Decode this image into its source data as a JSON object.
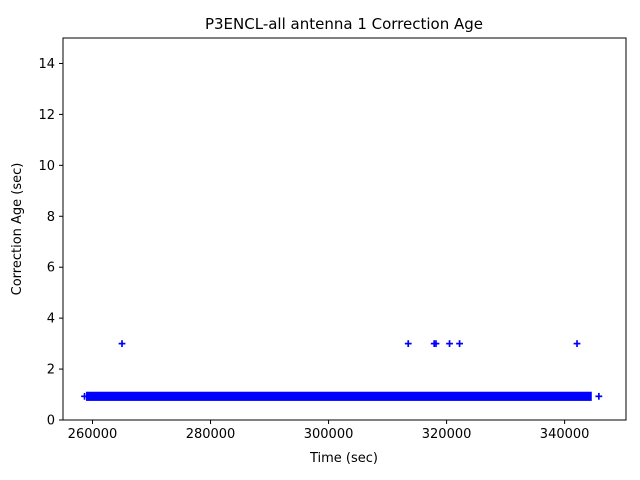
{
  "chart_data": {
    "type": "scatter",
    "title": "P3ENCL-all antenna 1 Correction Age",
    "xlabel": "Time (sec)",
    "ylabel": "Correction Age (sec)",
    "xlim": [
      255000,
      350400
    ],
    "ylim": [
      0,
      15
    ],
    "xticks": [
      260000,
      280000,
      300000,
      320000,
      340000
    ],
    "yticks": [
      0,
      2,
      4,
      6,
      8,
      10,
      12,
      14
    ],
    "grid": false,
    "legend": null,
    "marker": "plus",
    "marker_color": "#0000ff",
    "axis_color": "#000000",
    "background_color": "#ffffff",
    "dense_band": {
      "description": "continuous run of overlapping + markers at ~1 sec correction age",
      "x_start": 258900,
      "x_end": 344600,
      "y_center": 0.93,
      "y_half_height": 0.18
    },
    "band_edge_points": [
      [
        258650,
        0.93
      ],
      [
        345800,
        0.93
      ]
    ],
    "outliers": [
      [
        265000,
        3
      ],
      [
        313500,
        3
      ],
      [
        317900,
        3
      ],
      [
        318200,
        3
      ],
      [
        320500,
        3
      ],
      [
        322200,
        3
      ],
      [
        342100,
        3
      ]
    ]
  }
}
